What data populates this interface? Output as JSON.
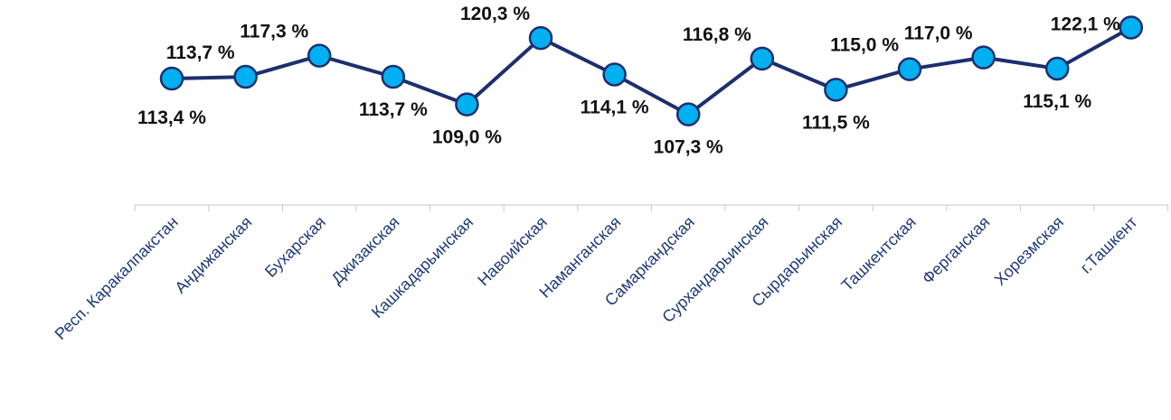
{
  "chart_data": {
    "type": "line",
    "title": "",
    "xlabel": "",
    "ylabel": "",
    "categories": [
      "Респ. Каракалпакстан",
      "Андижанская",
      "Бухарская",
      "Джизакская",
      "Кашкадарьинская",
      "Навоийская",
      "Наманганская",
      "Самаркандская",
      "Сурхандарьинская",
      "Сырдарьинская",
      "Ташкентская",
      "Ферганская",
      "Хорезмская",
      "г.Ташкент"
    ],
    "values": [
      113.4,
      113.7,
      117.3,
      113.7,
      109.0,
      120.3,
      114.1,
      107.3,
      116.8,
      111.5,
      115.0,
      117.0,
      115.1,
      122.1
    ],
    "data_labels": [
      "113,4 %",
      "113,7 %",
      "117,3 %",
      "113,7 %",
      "109,0 %",
      "120,3 %",
      "114,1 %",
      "107,3 %",
      "116,8 %",
      "111,5 %",
      "115,0 %",
      "117,0 %",
      "115,1 %",
      "122,1 %"
    ],
    "grid": false,
    "legend": "none",
    "colors": {
      "line": "#1c2f6e",
      "marker_fill": "#00b0f0",
      "marker_stroke": "#1c2f6e",
      "label": "#1f3a78",
      "axis": "#c8c8c8"
    }
  }
}
